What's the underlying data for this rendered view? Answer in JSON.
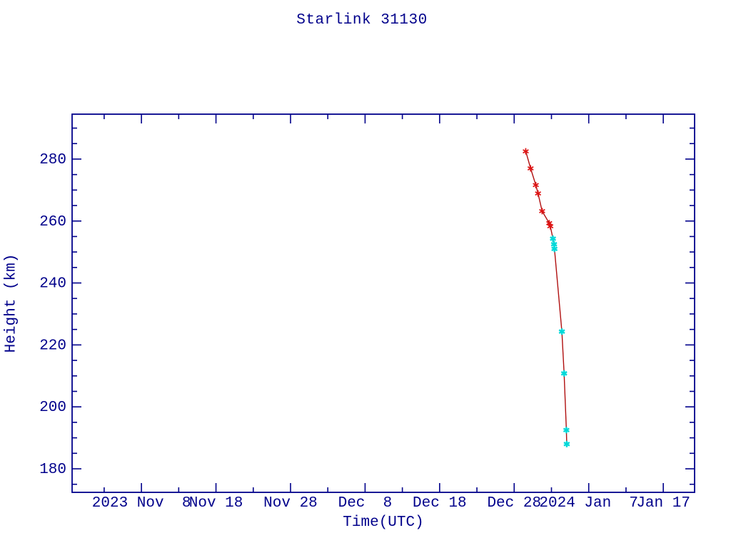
{
  "page": {
    "background": "#ffffff"
  },
  "chart_data": {
    "type": "line",
    "title": "Starlink 31130",
    "xlabel": "Time(UTC)",
    "ylabel": "Height (km)",
    "grid": false,
    "legend": null,
    "axis_color": "#00008b",
    "text_color": "#00008b",
    "line_color": "#b01010",
    "x_axis": {
      "unit": "days since 2023 Nov 8 00:00 UTC",
      "range_days": [
        -9.3,
        74.2
      ],
      "major_ticks": [
        {
          "day": 0,
          "label": "2023 Nov  8"
        },
        {
          "day": 10,
          "label": "Nov 18"
        },
        {
          "day": 20,
          "label": "Nov 28"
        },
        {
          "day": 30,
          "label": "Dec  8"
        },
        {
          "day": 40,
          "label": "Dec 18"
        },
        {
          "day": 50,
          "label": "Dec 28"
        },
        {
          "day": 60,
          "label": "2024 Jan  7"
        },
        {
          "day": 70,
          "label": "Jan 17"
        }
      ],
      "minor_tick_days": [
        -5,
        5,
        15,
        25,
        35,
        45,
        55,
        65
      ]
    },
    "y_axis": {
      "unit": "km",
      "range_km": [
        172.4,
        294.5
      ],
      "major_ticks": [
        {
          "km": 180,
          "label": "180"
        },
        {
          "km": 200,
          "label": "200"
        },
        {
          "km": 220,
          "label": "220"
        },
        {
          "km": 240,
          "label": "240"
        },
        {
          "km": 260,
          "label": "260"
        },
        {
          "km": 280,
          "label": "280"
        }
      ],
      "minor_tick_km": [
        175,
        185,
        190,
        195,
        205,
        210,
        215,
        225,
        230,
        235,
        245,
        250,
        255,
        265,
        270,
        275,
        285,
        290
      ]
    },
    "series": [
      {
        "name": "height-observations-red",
        "marker": "asterisk",
        "color": "#dd1111",
        "points": [
          {
            "day": 51.55,
            "km": 282.5
          },
          {
            "day": 52.2,
            "km": 277.0
          },
          {
            "day": 52.9,
            "km": 271.6
          },
          {
            "day": 53.2,
            "km": 268.9
          },
          {
            "day": 53.75,
            "km": 263.2
          },
          {
            "day": 54.7,
            "km": 259.3
          },
          {
            "day": 54.85,
            "km": 258.3
          }
        ]
      },
      {
        "name": "height-observations-cyan",
        "marker": "asterisk",
        "color": "#00d9d9",
        "points": [
          {
            "day": 55.2,
            "km": 254.3
          },
          {
            "day": 55.35,
            "km": 252.5
          },
          {
            "day": 55.4,
            "km": 251.0
          },
          {
            "day": 56.4,
            "km": 224.3
          },
          {
            "day": 56.7,
            "km": 210.8
          },
          {
            "day": 57.0,
            "km": 192.5
          },
          {
            "day": 57.05,
            "km": 188.0
          }
        ]
      }
    ]
  }
}
